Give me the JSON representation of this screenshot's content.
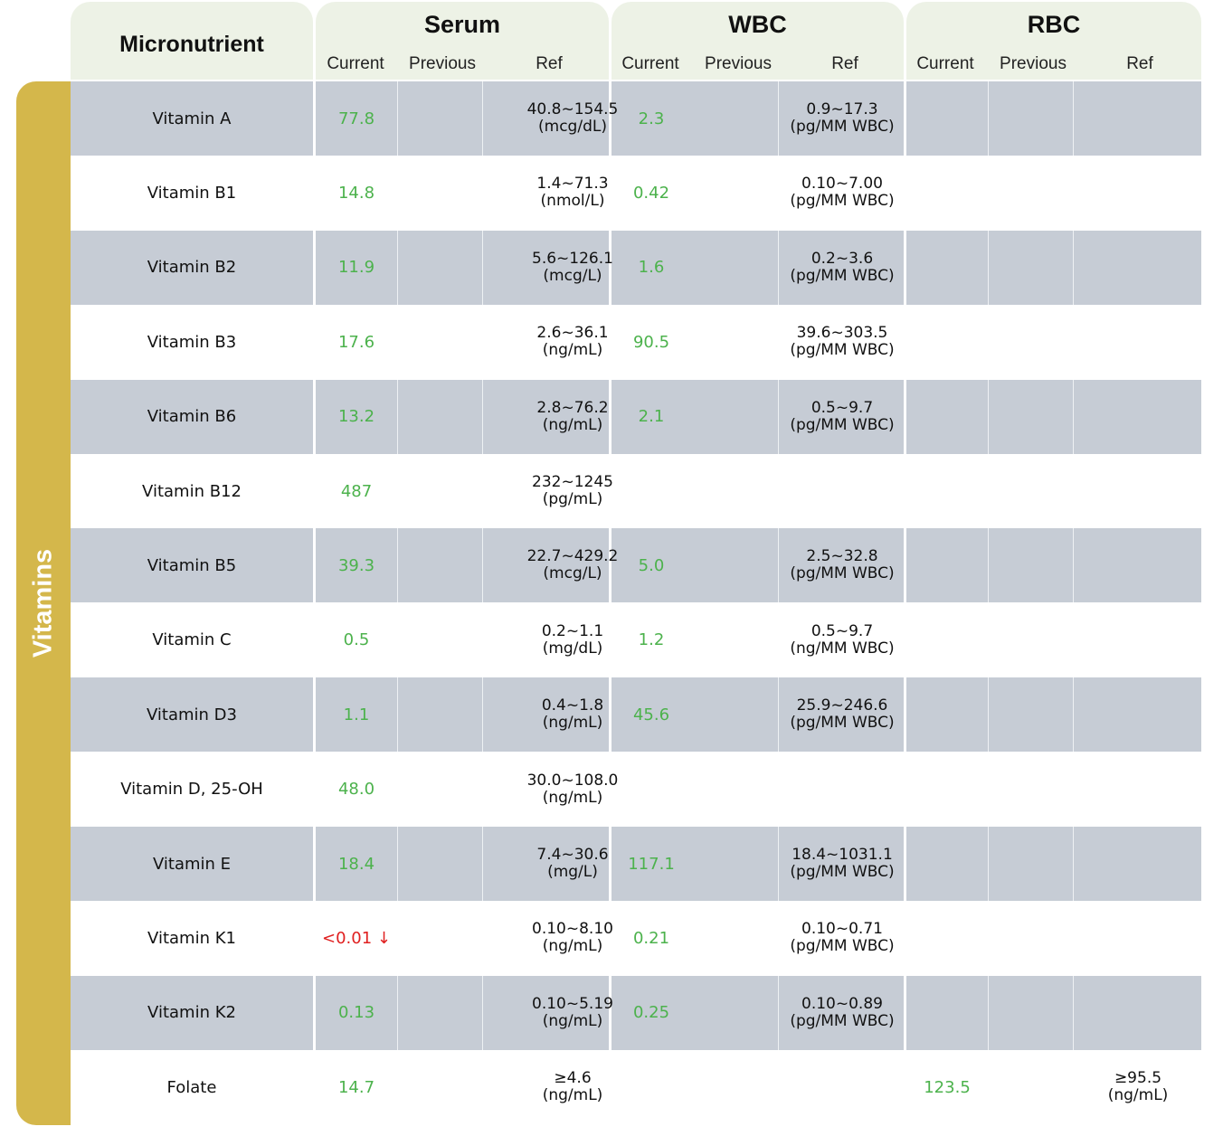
{
  "header": {
    "micronutrient": "Micronutrient",
    "groups": [
      {
        "title": "Serum",
        "current": "Current",
        "previous": "Previous",
        "ref": "Ref"
      },
      {
        "title": "WBC",
        "current": "Current",
        "previous": "Previous",
        "ref": "Ref"
      },
      {
        "title": "RBC",
        "current": "Current",
        "previous": "Previous",
        "ref": "Ref"
      }
    ]
  },
  "category": "Vitamins",
  "colors": {
    "header_bg": "#edf2e6",
    "side_bar": "#d4b74b",
    "row_shaded": "#c6ccd5",
    "value_normal": "#4cb24c",
    "value_low": "#e02020"
  },
  "rows": [
    {
      "name": "Vitamin A",
      "serum_current": "77.8",
      "serum_previous": "",
      "serum_ref": "40.8~154.5",
      "serum_unit": "(mcg/dL)",
      "wbc_current": "2.3",
      "wbc_previous": "",
      "wbc_ref": "0.9~17.3",
      "wbc_unit": "(pg/MM WBC)",
      "rbc_current": "",
      "rbc_previous": "",
      "rbc_ref": "",
      "rbc_unit": ""
    },
    {
      "name": "Vitamin B1",
      "serum_current": "14.8",
      "serum_previous": "",
      "serum_ref": "1.4~71.3",
      "serum_unit": "(nmol/L)",
      "wbc_current": "0.42",
      "wbc_previous": "",
      "wbc_ref": "0.10~7.00",
      "wbc_unit": "(pg/MM WBC)",
      "rbc_current": "",
      "rbc_previous": "",
      "rbc_ref": "",
      "rbc_unit": ""
    },
    {
      "name": "Vitamin B2",
      "serum_current": "11.9",
      "serum_previous": "",
      "serum_ref": "5.6~126.1",
      "serum_unit": "(mcg/L)",
      "wbc_current": "1.6",
      "wbc_previous": "",
      "wbc_ref": "0.2~3.6",
      "wbc_unit": "(pg/MM WBC)",
      "rbc_current": "",
      "rbc_previous": "",
      "rbc_ref": "",
      "rbc_unit": ""
    },
    {
      "name": "Vitamin B3",
      "serum_current": "17.6",
      "serum_previous": "",
      "serum_ref": "2.6~36.1",
      "serum_unit": "(ng/mL)",
      "wbc_current": "90.5",
      "wbc_previous": "",
      "wbc_ref": "39.6~303.5",
      "wbc_unit": "(pg/MM WBC)",
      "rbc_current": "",
      "rbc_previous": "",
      "rbc_ref": "",
      "rbc_unit": ""
    },
    {
      "name": "Vitamin B6",
      "serum_current": "13.2",
      "serum_previous": "",
      "serum_ref": "2.8~76.2",
      "serum_unit": "(ng/mL)",
      "wbc_current": "2.1",
      "wbc_previous": "",
      "wbc_ref": "0.5~9.7",
      "wbc_unit": "(pg/MM WBC)",
      "rbc_current": "",
      "rbc_previous": "",
      "rbc_ref": "",
      "rbc_unit": ""
    },
    {
      "name": "Vitamin B12",
      "serum_current": "487",
      "serum_previous": "",
      "serum_ref": "232~1245",
      "serum_unit": "(pg/mL)",
      "wbc_current": "",
      "wbc_previous": "",
      "wbc_ref": "",
      "wbc_unit": "",
      "rbc_current": "",
      "rbc_previous": "",
      "rbc_ref": "",
      "rbc_unit": ""
    },
    {
      "name": "Vitamin B5",
      "serum_current": "39.3",
      "serum_previous": "",
      "serum_ref": "22.7~429.2",
      "serum_unit": "(mcg/L)",
      "wbc_current": "5.0",
      "wbc_previous": "",
      "wbc_ref": "2.5~32.8",
      "wbc_unit": "(pg/MM WBC)",
      "rbc_current": "",
      "rbc_previous": "",
      "rbc_ref": "",
      "rbc_unit": ""
    },
    {
      "name": "Vitamin C",
      "serum_current": "0.5",
      "serum_previous": "",
      "serum_ref": "0.2~1.1",
      "serum_unit": "(mg/dL)",
      "wbc_current": "1.2",
      "wbc_previous": "",
      "wbc_ref": "0.5~9.7",
      "wbc_unit": "(ng/MM WBC)",
      "rbc_current": "",
      "rbc_previous": "",
      "rbc_ref": "",
      "rbc_unit": ""
    },
    {
      "name": "Vitamin D3",
      "serum_current": "1.1",
      "serum_previous": "",
      "serum_ref": "0.4~1.8",
      "serum_unit": "(ng/mL)",
      "wbc_current": "45.6",
      "wbc_previous": "",
      "wbc_ref": "25.9~246.6",
      "wbc_unit": "(pg/MM WBC)",
      "rbc_current": "",
      "rbc_previous": "",
      "rbc_ref": "",
      "rbc_unit": ""
    },
    {
      "name": "Vitamin D, 25-OH",
      "serum_current": "48.0",
      "serum_previous": "",
      "serum_ref": "30.0~108.0",
      "serum_unit": "(ng/mL)",
      "wbc_current": "",
      "wbc_previous": "",
      "wbc_ref": "",
      "wbc_unit": "",
      "rbc_current": "",
      "rbc_previous": "",
      "rbc_ref": "",
      "rbc_unit": ""
    },
    {
      "name": "Vitamin E",
      "serum_current": "18.4",
      "serum_previous": "",
      "serum_ref": "7.4~30.6",
      "serum_unit": "(mg/L)",
      "wbc_current": "117.1",
      "wbc_previous": "",
      "wbc_ref": "18.4~1031.1",
      "wbc_unit": "(pg/MM WBC)",
      "rbc_current": "",
      "rbc_previous": "",
      "rbc_ref": "",
      "rbc_unit": ""
    },
    {
      "name": "Vitamin K1",
      "serum_current": "<0.01 ↓",
      "serum_flag": "low",
      "serum_previous": "",
      "serum_ref": "0.10~8.10",
      "serum_unit": "(ng/mL)",
      "wbc_current": "0.21",
      "wbc_previous": "",
      "wbc_ref": "0.10~0.71",
      "wbc_unit": "(pg/MM WBC)",
      "rbc_current": "",
      "rbc_previous": "",
      "rbc_ref": "",
      "rbc_unit": ""
    },
    {
      "name": "Vitamin K2",
      "serum_current": "0.13",
      "serum_previous": "",
      "serum_ref": "0.10~5.19",
      "serum_unit": "(ng/mL)",
      "wbc_current": "0.25",
      "wbc_previous": "",
      "wbc_ref": "0.10~0.89",
      "wbc_unit": "(pg/MM WBC)",
      "rbc_current": "",
      "rbc_previous": "",
      "rbc_ref": "",
      "rbc_unit": ""
    },
    {
      "name": "Folate",
      "serum_current": "14.7",
      "serum_previous": "",
      "serum_ref": "≥4.6",
      "serum_unit": "(ng/mL)",
      "wbc_current": "",
      "wbc_previous": "",
      "wbc_ref": "",
      "wbc_unit": "",
      "rbc_current": "123.5",
      "rbc_previous": "",
      "rbc_ref": "≥95.5",
      "rbc_unit": "(ng/mL)"
    }
  ]
}
